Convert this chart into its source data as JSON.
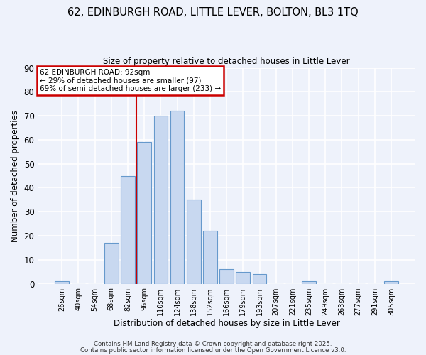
{
  "title": "62, EDINBURGH ROAD, LITTLE LEVER, BOLTON, BL3 1TQ",
  "subtitle": "Size of property relative to detached houses in Little Lever",
  "xlabel": "Distribution of detached houses by size in Little Lever",
  "ylabel": "Number of detached properties",
  "bar_color": "#c8d8f0",
  "bar_edge_color": "#6699cc",
  "background_color": "#eef2fb",
  "grid_color": "white",
  "categories": [
    "26sqm",
    "40sqm",
    "54sqm",
    "68sqm",
    "82sqm",
    "96sqm",
    "110sqm",
    "124sqm",
    "138sqm",
    "152sqm",
    "166sqm",
    "179sqm",
    "193sqm",
    "207sqm",
    "221sqm",
    "235sqm",
    "249sqm",
    "263sqm",
    "277sqm",
    "291sqm",
    "305sqm"
  ],
  "values": [
    1,
    0,
    0,
    17,
    45,
    59,
    70,
    72,
    35,
    22,
    6,
    5,
    4,
    0,
    0,
    1,
    0,
    0,
    0,
    0,
    1
  ],
  "ylim": [
    0,
    90
  ],
  "yticks": [
    0,
    10,
    20,
    30,
    40,
    50,
    60,
    70,
    80,
    90
  ],
  "vline_x_index": 4.5,
  "vline_color": "#cc0000",
  "annotation_title": "62 EDINBURGH ROAD: 92sqm",
  "annotation_line1": "← 29% of detached houses are smaller (97)",
  "annotation_line2": "69% of semi-detached houses are larger (233) →",
  "annotation_box_color": "white",
  "annotation_box_edge": "#cc0000",
  "footer1": "Contains HM Land Registry data © Crown copyright and database right 2025.",
  "footer2": "Contains public sector information licensed under the Open Government Licence v3.0.",
  "figsize": [
    6.0,
    5.0
  ],
  "dpi": 100
}
